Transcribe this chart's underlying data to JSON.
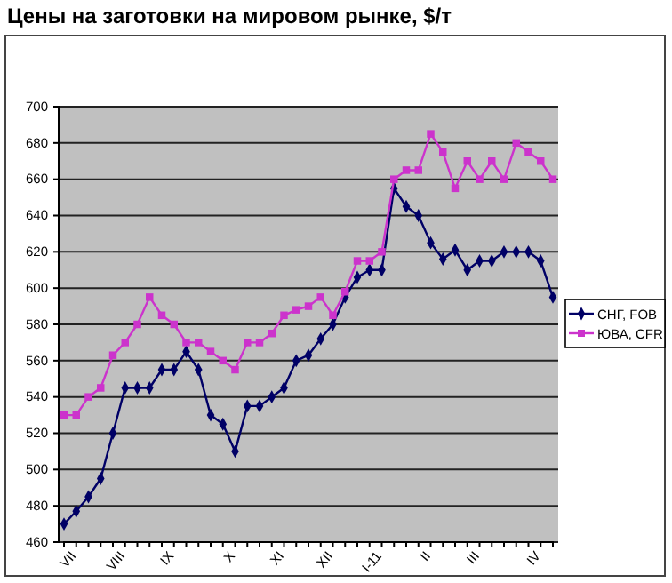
{
  "chart_data": {
    "type": "line",
    "title": "Цены на заготовки на мировом рынке, $/т",
    "categories": [
      "VII",
      null,
      null,
      null,
      "VIII",
      null,
      null,
      null,
      "IX",
      null,
      null,
      null,
      null,
      "X",
      null,
      null,
      null,
      "XI",
      null,
      null,
      null,
      "XII",
      null,
      null,
      null,
      "I-11",
      null,
      null,
      null,
      "II",
      null,
      null,
      null,
      "III",
      null,
      null,
      null,
      null,
      "IV",
      null,
      null
    ],
    "series": [
      {
        "name": "СНГ, FOB",
        "color": "#000066",
        "marker": "diamond",
        "values": [
          470,
          477,
          485,
          495,
          520,
          545,
          545,
          545,
          555,
          555,
          565,
          555,
          530,
          525,
          510,
          535,
          535,
          540,
          545,
          560,
          563,
          572,
          580,
          595,
          606,
          610,
          610,
          655,
          645,
          640,
          625,
          616,
          621,
          610,
          615,
          615,
          620,
          620,
          620,
          615,
          595
        ]
      },
      {
        "name": "ЮВА, CFR",
        "color": "#cc33cc",
        "marker": "square",
        "values": [
          530,
          530,
          540,
          545,
          563,
          570,
          580,
          595,
          585,
          580,
          570,
          570,
          565,
          560,
          555,
          570,
          570,
          575,
          585,
          588,
          590,
          595,
          585,
          598,
          615,
          615,
          620,
          660,
          665,
          665,
          685,
          675,
          655,
          670,
          660,
          670,
          660,
          680,
          675,
          670,
          660
        ]
      }
    ],
    "ylim": [
      460,
      700
    ],
    "yticks": [
      460,
      480,
      500,
      520,
      540,
      560,
      580,
      600,
      620,
      640,
      660,
      680,
      700
    ],
    "grid": "y",
    "legend": "right"
  }
}
